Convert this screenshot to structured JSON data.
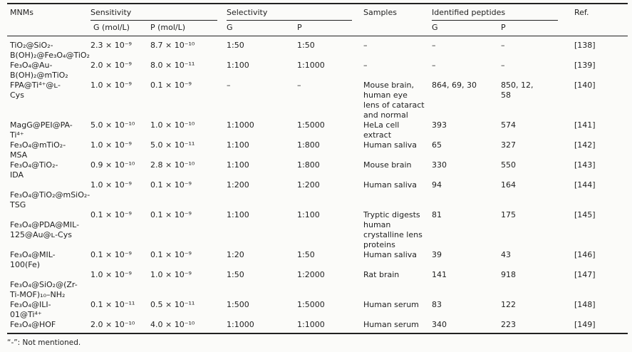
{
  "table": {
    "header": {
      "mnms": "MNMs",
      "sensitivity": "Sensitivity",
      "selectivity": "Selectivity",
      "samples": "Samples",
      "identified_peptides": "Identified peptides",
      "ref": "Ref.",
      "sens_g": "G (mol/L)",
      "sens_p": "P (mol/L)",
      "sel_g": "G",
      "sel_p": "P",
      "pep_g": "G",
      "pep_p": "P"
    },
    "rows": [
      {
        "mnm": "TiO₂@SiO₂-\nB(OH)₂@Fe₃O₄@TiO₂",
        "sens_g": "2.3 × 10⁻⁹",
        "sens_p": "8.7 × 10⁻¹⁰",
        "sel_g": "1:50",
        "sel_p": "1:50",
        "samples": "–",
        "pep_g": "–",
        "pep_p": "–",
        "ref": "[138]"
      },
      {
        "mnm": "Fe₃O₄@Au-\nB(OH)₂@mTiO₂",
        "sens_g": "2.0 × 10⁻⁹",
        "sens_p": "8.0 × 10⁻¹¹",
        "sel_g": "1:100",
        "sel_p": "1:1000",
        "samples": "–",
        "pep_g": "–",
        "pep_p": "–",
        "ref": "[139]"
      },
      {
        "mnm": "FPA@Ti⁴⁺@ʟ-\nCys",
        "sens_g": "1.0 × 10⁻⁹",
        "sens_p": "0.1 × 10⁻⁹",
        "sel_g": "–",
        "sel_p": "–",
        "samples": "Mouse brain,\nhuman eye\nlens of cataract\nand normal",
        "pep_g": "864, 69, 30",
        "pep_p": "850, 12,\n58",
        "ref": "[140]"
      },
      {
        "mnm": "MagG@PEI@PA-\nTi⁴⁺",
        "sens_g": "5.0 × 10⁻¹⁰",
        "sens_p": "1.0 × 10⁻¹⁰",
        "sel_g": "1:1000",
        "sel_p": "1:5000",
        "samples": "HeLa cell\nextract",
        "pep_g": "393",
        "pep_p": "574",
        "ref": "[141]"
      },
      {
        "mnm": "Fe₃O₄@mTiO₂-\nMSA",
        "sens_g": "1.0 × 10⁻⁹",
        "sens_p": "5.0 × 10⁻¹¹",
        "sel_g": "1:100",
        "sel_p": "1:800",
        "samples": "Human saliva",
        "pep_g": "65",
        "pep_p": "327",
        "ref": "[142]"
      },
      {
        "mnm": "Fe₃O₄@TiO₂-\nIDA",
        "sens_g": "0.9 × 10⁻¹⁰",
        "sens_p": "2.8 × 10⁻¹⁰",
        "sel_g": "1:100",
        "sel_p": "1:800",
        "samples": "Mouse brain",
        "pep_g": "330",
        "pep_p": "550",
        "ref": "[143]"
      },
      {
        "mnm": "\nFe₃O₄@TiO₂@mSiO₂-\nTSG",
        "sens_g": "1.0 × 10⁻⁹",
        "sens_p": "0.1 × 10⁻⁹",
        "sel_g": "1:200",
        "sel_p": "1:200",
        "samples": "Human saliva",
        "pep_g": "94",
        "pep_p": "164",
        "ref": "[144]"
      },
      {
        "mnm": "\nFe₃O₄@PDA@MIL-\n125@Au@ʟ-Cys",
        "sens_g": "0.1 × 10⁻⁹",
        "sens_p": "0.1 × 10⁻⁹",
        "sel_g": "1:100",
        "sel_p": "1:100",
        "samples": "Tryptic digests\nhuman\ncrystalline lens\nproteins",
        "pep_g": "81",
        "pep_p": "175",
        "ref": "[145]"
      },
      {
        "mnm": "Fe₃O₄@MIL-\n100(Fe)",
        "sens_g": "0.1 × 10⁻⁹",
        "sens_p": "0.1 × 10⁻⁹",
        "sel_g": "1:20",
        "sel_p": "1:50",
        "samples": "Human saliva",
        "pep_g": "39",
        "pep_p": "43",
        "ref": "[146]"
      },
      {
        "mnm": "\nFe₃O₄@SiO₂@(Zr-\nTi-MOF)₁₀–NH₂",
        "sens_g": "1.0 × 10⁻⁹",
        "sens_p": "1.0 × 10⁻⁹",
        "sel_g": "1:50",
        "sel_p": "1:2000",
        "samples": "Rat brain",
        "pep_g": "141",
        "pep_p": "918",
        "ref": "[147]"
      },
      {
        "mnm": "Fe₃O₄@ILI-\n01@Ti⁴⁺",
        "sens_g": "0.1 × 10⁻¹¹",
        "sens_p": "0.5 × 10⁻¹¹",
        "sel_g": "1:500",
        "sel_p": "1:5000",
        "samples": "Human serum",
        "pep_g": "83",
        "pep_p": "122",
        "ref": "[148]"
      },
      {
        "mnm": "Fe₃O₄@HOF",
        "sens_g": "2.0 × 10⁻¹⁰",
        "sens_p": "4.0 × 10⁻¹⁰",
        "sel_g": "1:1000",
        "sel_p": "1:1000",
        "samples": "Human serum",
        "pep_g": "340",
        "pep_p": "223",
        "ref": "[149]"
      }
    ],
    "footnote": "“-”: Not mentioned."
  }
}
